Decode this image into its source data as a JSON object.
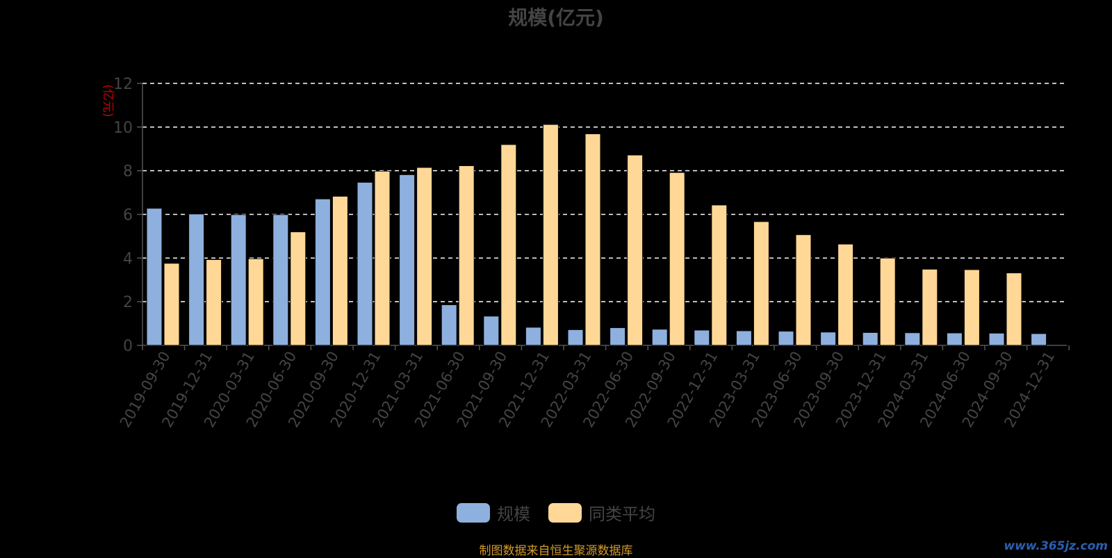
{
  "chart_data": {
    "type": "bar",
    "title": "规模(亿元)",
    "ylabel": "(亿元)",
    "ylim": [
      0,
      12
    ],
    "yticks": [
      0,
      2,
      4,
      6,
      8,
      10,
      12
    ],
    "grid": true,
    "legend_position": "bottom",
    "categories": [
      "2019-09-30",
      "2019-12-31",
      "2020-03-31",
      "2020-06-30",
      "2020-09-30",
      "2020-12-31",
      "2021-03-31",
      "2021-06-30",
      "2021-09-30",
      "2021-12-31",
      "2022-03-31",
      "2022-06-30",
      "2022-09-30",
      "2022-12-31",
      "2023-03-31",
      "2023-06-30",
      "2023-09-30",
      "2023-12-31",
      "2024-03-31",
      "2024-06-30",
      "2024-09-30",
      "2024-12-31"
    ],
    "series": [
      {
        "name": "规模",
        "color": "#8eb0de",
        "values": [
          6.28,
          6.02,
          5.99,
          5.99,
          6.71,
          7.47,
          7.82,
          1.86,
          1.34,
          0.83,
          0.72,
          0.81,
          0.74,
          0.7,
          0.67,
          0.65,
          0.61,
          0.59,
          0.58,
          0.57,
          0.56,
          0.54
        ]
      },
      {
        "name": "同类平均",
        "color": "#ffd897",
        "values": [
          3.76,
          3.93,
          3.97,
          5.2,
          6.83,
          7.98,
          8.15,
          8.23,
          9.2,
          10.12,
          9.69,
          8.72,
          7.92,
          6.43,
          5.67,
          5.07,
          4.64,
          4.0,
          3.49,
          3.47,
          3.32,
          null
        ]
      }
    ]
  },
  "footer": {
    "source": "制图数据来自恒生聚源数据库",
    "watermark": "www.365jz.com"
  }
}
